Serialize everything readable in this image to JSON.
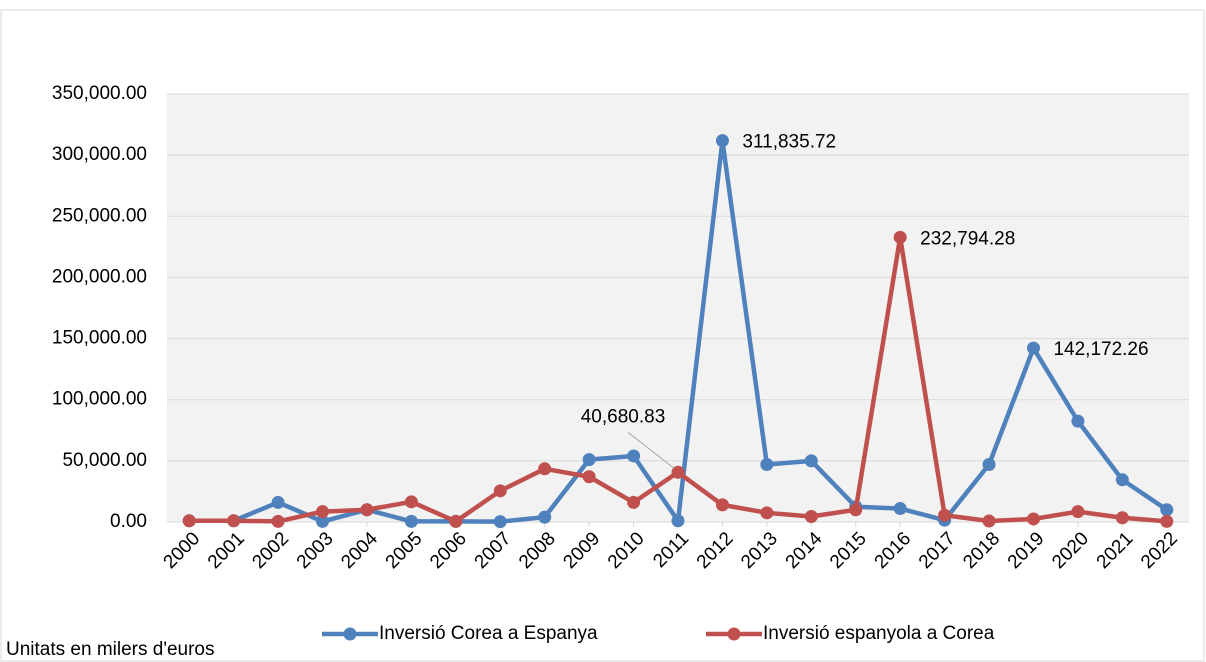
{
  "chart_data": {
    "type": "line",
    "categories": [
      "2000",
      "2001",
      "2002",
      "2003",
      "2004",
      "2005",
      "2006",
      "2007",
      "2008",
      "2009",
      "2010",
      "2011",
      "2012",
      "2013",
      "2014",
      "2015",
      "2016",
      "2017",
      "2018",
      "2019",
      "2020",
      "2021",
      "2022"
    ],
    "series": [
      {
        "name": "Inversió Corea a Espanya",
        "color": "#4f81bd",
        "values": [
          1000,
          1000,
          16000,
          500,
          10000,
          500,
          500,
          300,
          4000,
          51000,
          54000,
          1000,
          311835.72,
          47000,
          50000,
          12500,
          11000,
          1500,
          47000,
          142172.26,
          82500,
          34500,
          10000
        ],
        "value_labels": [
          null,
          null,
          null,
          null,
          null,
          null,
          null,
          null,
          null,
          null,
          null,
          null,
          "311,835.72",
          null,
          null,
          null,
          null,
          null,
          null,
          "142,172.26",
          null,
          null,
          null
        ]
      },
      {
        "name": "Inversió espanyola a Corea",
        "color": "#c0504d",
        "values": [
          1000,
          1000,
          500,
          8500,
          10000,
          16500,
          500,
          25500,
          43500,
          37000,
          16000,
          40680.83,
          14000,
          7500,
          4500,
          10000,
          232794.28,
          5500,
          800,
          2500,
          8500,
          3500,
          500
        ],
        "value_labels": [
          null,
          null,
          null,
          null,
          null,
          null,
          null,
          null,
          null,
          null,
          null,
          "40,680.83",
          null,
          null,
          null,
          null,
          "232,794.28",
          null,
          null,
          null,
          null,
          null,
          null
        ]
      }
    ],
    "ylim": [
      0,
      350000
    ],
    "yticks": [
      {
        "value": 0,
        "label": "0.00"
      },
      {
        "value": 50000,
        "label": "50,000.00"
      },
      {
        "value": 100000,
        "label": "100,000.00"
      },
      {
        "value": 150000,
        "label": "150,000.00"
      },
      {
        "value": 200000,
        "label": "200,000.00"
      },
      {
        "value": 250000,
        "label": "250,000.00"
      },
      {
        "value": 300000,
        "label": "300,000.00"
      },
      {
        "value": 350000,
        "label": "350,000.00"
      }
    ],
    "grid": true,
    "legend": "bottom",
    "note": "Unitats en milers d'euros"
  }
}
